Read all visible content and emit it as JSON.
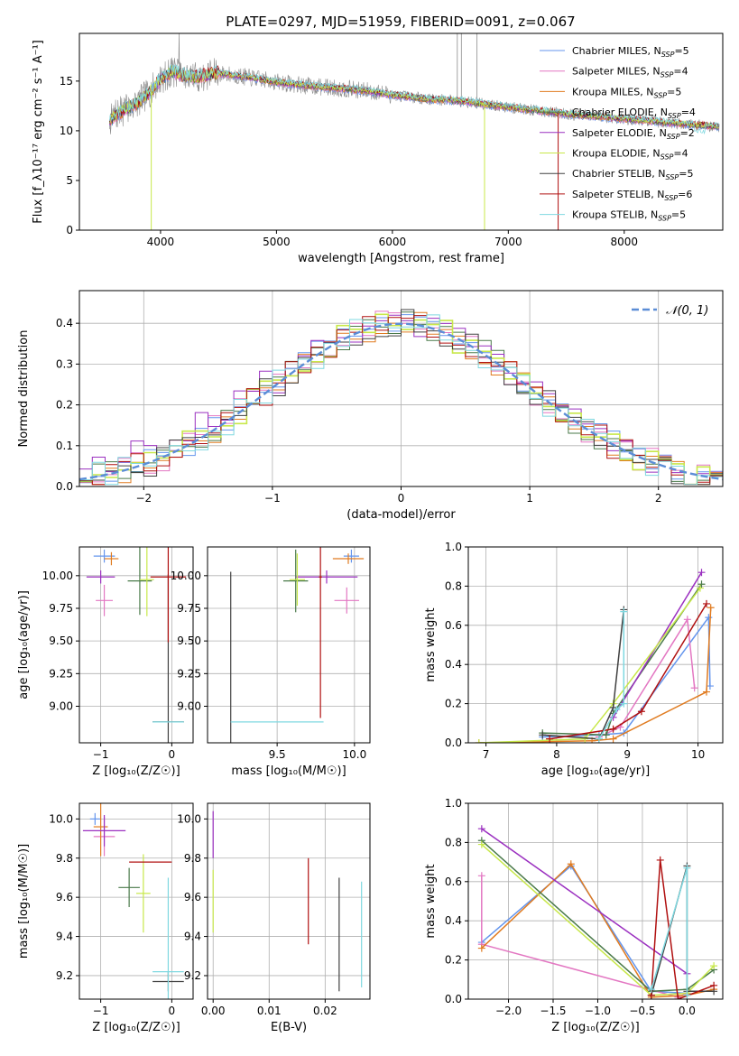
{
  "figure": {
    "title": "PLATE=0297, MJD=51959, FIBERID=0091, z=0.067"
  },
  "models": [
    {
      "label": "Chabrier MILES, N",
      "nssp": "5",
      "color": "#6495ed"
    },
    {
      "label": "Salpeter MILES, N",
      "nssp": "4",
      "color": "#e377c2"
    },
    {
      "label": "Kroupa MILES, N",
      "nssp": "5",
      "color": "#e07b20"
    },
    {
      "label": "Chabrier ELODIE, N",
      "nssp": "4",
      "color": "#4a7a4a"
    },
    {
      "label": "Salpeter ELODIE, N",
      "nssp": "2",
      "color": "#9b30c0"
    },
    {
      "label": "Kroupa ELODIE, N",
      "nssp": "4",
      "color": "#c8e84a"
    },
    {
      "label": "Chabrier STELIB, N",
      "nssp": "5",
      "color": "#404040"
    },
    {
      "label": "Salpeter STELIB, N",
      "nssp": "6",
      "color": "#b01010"
    },
    {
      "label": "Kroupa STELIB, N",
      "nssp": "5",
      "color": "#7fd8e0"
    }
  ],
  "chart_data": [
    {
      "type": "line",
      "panel": "spectrum",
      "title": "PLATE=0297, MJD=51959, FIBERID=0091, z=0.067",
      "xlabel": "wavelength [Angstrom, rest frame]",
      "ylabel": "Flux [f_λ10⁻¹⁷ erg cm⁻² s⁻¹ A⁻¹]",
      "xlim": [
        3300,
        8850
      ],
      "ylim": [
        0,
        19.8
      ],
      "xticks": [
        "4000",
        "5000",
        "6000",
        "7000",
        "8000"
      ],
      "yticks": [
        "0",
        "5",
        "10",
        "15"
      ],
      "legend": "top-right",
      "continuum": {
        "x": [
          3560,
          3600,
          3700,
          3800,
          3900,
          4000,
          4100,
          4200,
          4300,
          4500,
          4800,
          5000,
          5200,
          5500,
          5800,
          6000,
          6300,
          6600,
          6900,
          7200,
          7500,
          7800,
          8100,
          8400,
          8600,
          8820
        ],
        "y": [
          11.0,
          11.5,
          12.2,
          12.8,
          13.8,
          15.2,
          16.0,
          15.6,
          15.4,
          15.8,
          15.3,
          14.9,
          14.6,
          14.3,
          14.0,
          13.6,
          13.2,
          13.0,
          12.5,
          12.1,
          11.7,
          11.4,
          11.1,
          10.8,
          10.6,
          10.4
        ]
      }
    },
    {
      "type": "line",
      "panel": "residuals",
      "xlabel": "(data-model)/error",
      "ylabel": "Normed distribution",
      "xlim": [
        -2.5,
        2.5
      ],
      "ylim": [
        0,
        0.48
      ],
      "xticks": [
        "−2",
        "−1",
        "0",
        "1",
        "2"
      ],
      "yticks": [
        "0.0",
        "0.1",
        "0.2",
        "0.3",
        "0.4"
      ],
      "legend": "top-right",
      "reference_curve": "𝒩(0, 1)"
    },
    {
      "type": "scatter",
      "panel": "age-vs-Z",
      "xlabel": "Z [log₁₀(Z/Z☉)]",
      "ylabel": "age  [log₁₀(age/yr)]",
      "xlim": [
        -1.3,
        0.3
      ],
      "ylim": [
        8.72,
        10.22
      ],
      "xticks": [
        "−1",
        "0"
      ],
      "yticks": [
        "9.00",
        "9.25",
        "9.50",
        "9.75",
        "10.00"
      ],
      "points": [
        {
          "x": -0.95,
          "y": 10.15,
          "xerr": 0.15,
          "yerr": 0.05,
          "c": 0
        },
        {
          "x": -0.95,
          "y": 9.81,
          "xerr": 0.12,
          "yerr": 0.12,
          "c": 1
        },
        {
          "x": -0.85,
          "y": 10.13,
          "xerr": 0.1,
          "yerr": 0.05,
          "c": 2
        },
        {
          "x": -0.45,
          "y": 9.96,
          "xerr": 0.17,
          "yerr": 0.26,
          "c": 3
        },
        {
          "x": -1.0,
          "y": 9.99,
          "xerr": 0.2,
          "yerr": 0.05,
          "c": 4
        },
        {
          "x": -0.35,
          "y": 9.97,
          "xerr": 0.1,
          "yerr": 0.28,
          "c": 5
        },
        {
          "x": -0.05,
          "y": 8.88,
          "xerr": 0.22,
          "yerr": 1.13,
          "c": 6
        },
        {
          "x": -0.05,
          "y": 9.99,
          "xerr": 0.25,
          "yerr": 0.5,
          "c": 7
        },
        {
          "x": -0.05,
          "y": 8.88,
          "xerr": 0.22,
          "yerr": 0.0,
          "c": 8
        }
      ]
    },
    {
      "type": "scatter",
      "panel": "age-vs-mass",
      "xlabel": "mass [log₁₀(M/M☉)]",
      "xlim": [
        9.05,
        10.1
      ],
      "ylim": [
        8.72,
        10.22
      ],
      "xticks": [
        "9.5",
        "10.0"
      ],
      "yticks": [
        "9.00",
        "9.25",
        "9.50",
        "9.75",
        "10.00"
      ],
      "points": [
        {
          "x": 9.98,
          "y": 10.15,
          "xerr": 0.05,
          "yerr": 0.05,
          "c": 0
        },
        {
          "x": 9.95,
          "y": 9.81,
          "xerr": 0.08,
          "yerr": 0.1,
          "c": 1
        },
        {
          "x": 9.96,
          "y": 10.13,
          "xerr": 0.1,
          "yerr": 0.04,
          "c": 2
        },
        {
          "x": 9.62,
          "y": 9.96,
          "xerr": 0.08,
          "yerr": 0.24,
          "c": 3
        },
        {
          "x": 9.82,
          "y": 9.99,
          "xerr": 0.2,
          "yerr": 0.05,
          "c": 4
        },
        {
          "x": 9.63,
          "y": 9.97,
          "xerr": 0.05,
          "yerr": 0.2,
          "c": 5
        },
        {
          "x": 9.2,
          "y": 8.88,
          "xerr": 0.0,
          "yerr": 1.15,
          "c": 6
        },
        {
          "x": 9.78,
          "y": 9.99,
          "xerr": 0.01,
          "yerr": 1.08,
          "c": 7
        },
        {
          "x": 9.5,
          "y": 8.88,
          "xerr": 0.3,
          "yerr": 0.0,
          "c": 8
        }
      ]
    },
    {
      "type": "line",
      "panel": "massweight-vs-age",
      "xlabel": "age  [log₁₀(age/yr)]",
      "ylabel": "mass weight",
      "xlim": [
        6.75,
        10.35
      ],
      "ylim": [
        0,
        1.0
      ],
      "xticks": [
        "7",
        "8",
        "9",
        "10"
      ],
      "yticks": [
        "0.0",
        "0.2",
        "0.4",
        "0.6",
        "0.8",
        "1.0"
      ],
      "series": [
        {
          "c": 0,
          "x": [
            7.8,
            8.6,
            8.95,
            10.15,
            10.17
          ],
          "y": [
            0.03,
            0.04,
            0.05,
            0.64,
            0.29
          ]
        },
        {
          "c": 1,
          "x": [
            8.6,
            8.9,
            9.85,
            9.95
          ],
          "y": [
            0.03,
            0.08,
            0.63,
            0.28
          ]
        },
        {
          "c": 2,
          "x": [
            6.9,
            8.5,
            8.8,
            10.12,
            10.18
          ],
          "y": [
            0.0,
            0.01,
            0.02,
            0.26,
            0.69
          ]
        },
        {
          "c": 3,
          "x": [
            7.8,
            8.7,
            8.8,
            10.05
          ],
          "y": [
            0.05,
            0.04,
            0.15,
            0.81
          ]
        },
        {
          "c": 4,
          "x": [
            8.8,
            10.05
          ],
          "y": [
            0.13,
            0.87
          ]
        },
        {
          "c": 5,
          "x": [
            6.9,
            8.4,
            8.8,
            10.03
          ],
          "y": [
            0.0,
            0.02,
            0.2,
            0.79
          ]
        },
        {
          "c": 6,
          "x": [
            7.8,
            8.6,
            8.8,
            8.95
          ],
          "y": [
            0.04,
            0.02,
            0.18,
            0.68
          ]
        },
        {
          "c": 7,
          "x": [
            7.9,
            8.8,
            9.2,
            10.12
          ],
          "y": [
            0.02,
            0.07,
            0.16,
            0.71
          ]
        },
        {
          "c": 8,
          "x": [
            8.6,
            8.85,
            8.95,
            8.95
          ],
          "y": [
            0.02,
            0.17,
            0.2,
            0.67
          ]
        }
      ]
    },
    {
      "type": "scatter",
      "panel": "mass-vs-Z",
      "xlabel": "Z [log₁₀(Z/Z☉)]",
      "ylabel": "mass [log₁₀(M/M☉)]",
      "xlim": [
        -1.3,
        0.3
      ],
      "ylim": [
        9.08,
        10.08
      ],
      "xticks": [
        "−1",
        "0"
      ],
      "yticks": [
        "9.2",
        "9.4",
        "9.6",
        "9.8",
        "10.0"
      ],
      "points": [
        {
          "x": -1.08,
          "y": 10.0,
          "xerr": 0.07,
          "yerr": 0.03,
          "c": 0
        },
        {
          "x": -0.95,
          "y": 9.91,
          "xerr": 0.15,
          "yerr": 0.1,
          "c": 1
        },
        {
          "x": -1.0,
          "y": 9.96,
          "xerr": 0.1,
          "yerr": 0.15,
          "c": 2
        },
        {
          "x": -0.6,
          "y": 9.65,
          "xerr": 0.15,
          "yerr": 0.1,
          "c": 3
        },
        {
          "x": -0.95,
          "y": 9.94,
          "xerr": 0.3,
          "yerr": 0.08,
          "c": 4
        },
        {
          "x": -0.4,
          "y": 9.62,
          "xerr": 0.1,
          "yerr": 0.2,
          "c": 5
        },
        {
          "x": -0.05,
          "y": 9.17,
          "xerr": 0.22,
          "yerr": 0.05,
          "c": 6
        },
        {
          "x": -0.3,
          "y": 9.78,
          "xerr": 0.3,
          "yerr": 0.0,
          "c": 7
        },
        {
          "x": -0.05,
          "y": 9.22,
          "xerr": 0.22,
          "yerr": 0.48,
          "c": 8
        }
      ]
    },
    {
      "type": "scatter",
      "panel": "mass-vs-EBV",
      "xlabel": "E(B-V)",
      "xlim": [
        -0.001,
        0.028
      ],
      "ylim": [
        9.08,
        10.08
      ],
      "xticks": [
        "0.00",
        "0.01",
        "0.02"
      ],
      "yticks": [
        "9.2",
        "9.4",
        "9.6",
        "9.8",
        "10.0"
      ],
      "points": [
        {
          "x": 0.0,
          "y": 9.92,
          "xerr": 0.0,
          "yerr": 0.12,
          "c": 4
        },
        {
          "x": 0.0,
          "y": 9.58,
          "xerr": 0.0,
          "yerr": 0.16,
          "c": 5
        },
        {
          "x": 0.017,
          "y": 9.58,
          "xerr": 0.0,
          "yerr": 0.22,
          "c": 7
        },
        {
          "x": 0.0225,
          "y": 9.41,
          "xerr": 0.0,
          "yerr": 0.29,
          "c": 6
        },
        {
          "x": 0.0265,
          "y": 9.41,
          "xerr": 0.0,
          "yerr": 0.27,
          "c": 8
        }
      ]
    },
    {
      "type": "line",
      "panel": "massweight-vs-Z",
      "xlabel": "Z [log₁₀(Z/Z☉)]",
      "ylabel": "mass weight",
      "xlim": [
        -2.45,
        0.4
      ],
      "ylim": [
        0,
        1.0
      ],
      "xticks": [
        "−2.0",
        "−1.5",
        "−1.0",
        "−0.5",
        "0.0"
      ],
      "yticks": [
        "0.0",
        "0.2",
        "0.4",
        "0.6",
        "0.8",
        "1.0"
      ],
      "series": [
        {
          "c": 0,
          "x": [
            -2.3,
            -1.3,
            -0.4,
            0.0
          ],
          "y": [
            0.29,
            0.68,
            0.04,
            0.03
          ]
        },
        {
          "c": 1,
          "x": [
            -2.3,
            -2.3,
            -0.1,
            0.0
          ],
          "y": [
            0.63,
            0.28,
            0.01,
            0.03
          ]
        },
        {
          "c": 2,
          "x": [
            -2.3,
            -1.3,
            -0.4,
            0.0,
            0.3
          ],
          "y": [
            0.26,
            0.69,
            0.01,
            0.02,
            0.05
          ]
        },
        {
          "c": 3,
          "x": [
            -2.3,
            -0.4,
            0.0,
            0.3
          ],
          "y": [
            0.81,
            0.04,
            0.05,
            0.15
          ]
        },
        {
          "c": 4,
          "x": [
            -2.3,
            0.0
          ],
          "y": [
            0.87,
            0.13
          ]
        },
        {
          "c": 5,
          "x": [
            -2.3,
            -0.4,
            0.0,
            0.3
          ],
          "y": [
            0.79,
            0.02,
            0.03,
            0.17
          ]
        },
        {
          "c": 6,
          "x": [
            -0.4,
            0.0,
            0.0,
            0.3
          ],
          "y": [
            0.02,
            0.68,
            0.04,
            0.04
          ]
        },
        {
          "c": 7,
          "x": [
            -0.4,
            -0.3,
            -0.1,
            0.3
          ],
          "y": [
            0.02,
            0.71,
            0.0,
            0.07
          ]
        },
        {
          "c": 8,
          "x": [
            -0.4,
            0.0,
            0.0
          ],
          "y": [
            0.05,
            0.67,
            0.02
          ]
        }
      ]
    }
  ]
}
